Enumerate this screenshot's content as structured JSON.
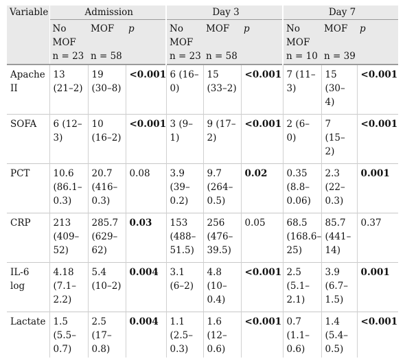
{
  "headers": {
    "variable": "Variable",
    "groups": [
      "Admission",
      "Day 3",
      "Day 7"
    ],
    "sub": [
      "No MOF",
      "MOF",
      "p",
      "No MOF",
      "MOF",
      "p",
      "No MOF",
      "MOF",
      "p"
    ],
    "n": [
      "n = 23",
      "n = 58",
      "",
      "n = 23",
      "n = 58",
      "",
      "n = 10",
      "n = 39",
      ""
    ]
  },
  "rows": [
    {
      "label": "Apache II",
      "cells": [
        "13 (21–2)",
        "19 (30–8)",
        "<0.001",
        "6 (16–0)",
        "15 (33–2)",
        "<0.001",
        "7 (11–3)",
        "15 (30–4)",
        "<0.001"
      ]
    },
    {
      "label": "SOFA",
      "cells": [
        "6 (12–3)",
        "10 (16–2)",
        "<0.001",
        "3 (9–1)",
        "9 (17–2)",
        "<0.001",
        "2 (6–0)",
        "7 (15–2)",
        "<0.001"
      ]
    },
    {
      "label": "PCT",
      "cells": [
        "10.6 (86.1–0.3)",
        "20.7 (416–0.3)",
        "0.08",
        "3.9 (39–0.2)",
        "9.7 (264–0.5)",
        "0.02",
        "0.35 (8.8–0.06)",
        "2.3 (22–0.3)",
        "0.001"
      ]
    },
    {
      "label": "CRP",
      "cells": [
        "213 (409–52)",
        "285.7 (629–62)",
        "0.03",
        "153 (488–51.5)",
        "256 (476–39.5)",
        "0.05",
        "68.5 (168.6–25)",
        "85.7 (441–14)",
        "0.37"
      ]
    },
    {
      "label": "IL-6 log",
      "cells": [
        "4.18 (7.1–2.2)",
        "5.4 (10–2)",
        "0.004",
        "3.1 (6–2)",
        "4.8 (10–0.4)",
        "<0.001",
        "2.5 (5.1–2.1)",
        "3.9 (6.7–1.5)",
        "0.001"
      ]
    },
    {
      "label": "Lactate",
      "cells": [
        "1.5 (5.5–0.7)",
        "2.5 (17–0.8)",
        "0.004",
        "1.1 (2.5–0.3)",
        "1.6 (12–0.6)",
        "<0.001",
        "0.7 (1.1–0.6)",
        "1.4 (5.4–0.5)",
        "<0.001"
      ]
    }
  ],
  "bold_cells": [
    [
      2,
      5,
      8
    ],
    [
      2,
      5,
      8
    ],
    [
      5,
      8
    ],
    [
      2
    ],
    [
      2,
      5,
      8
    ],
    [
      2,
      5,
      8
    ]
  ]
}
